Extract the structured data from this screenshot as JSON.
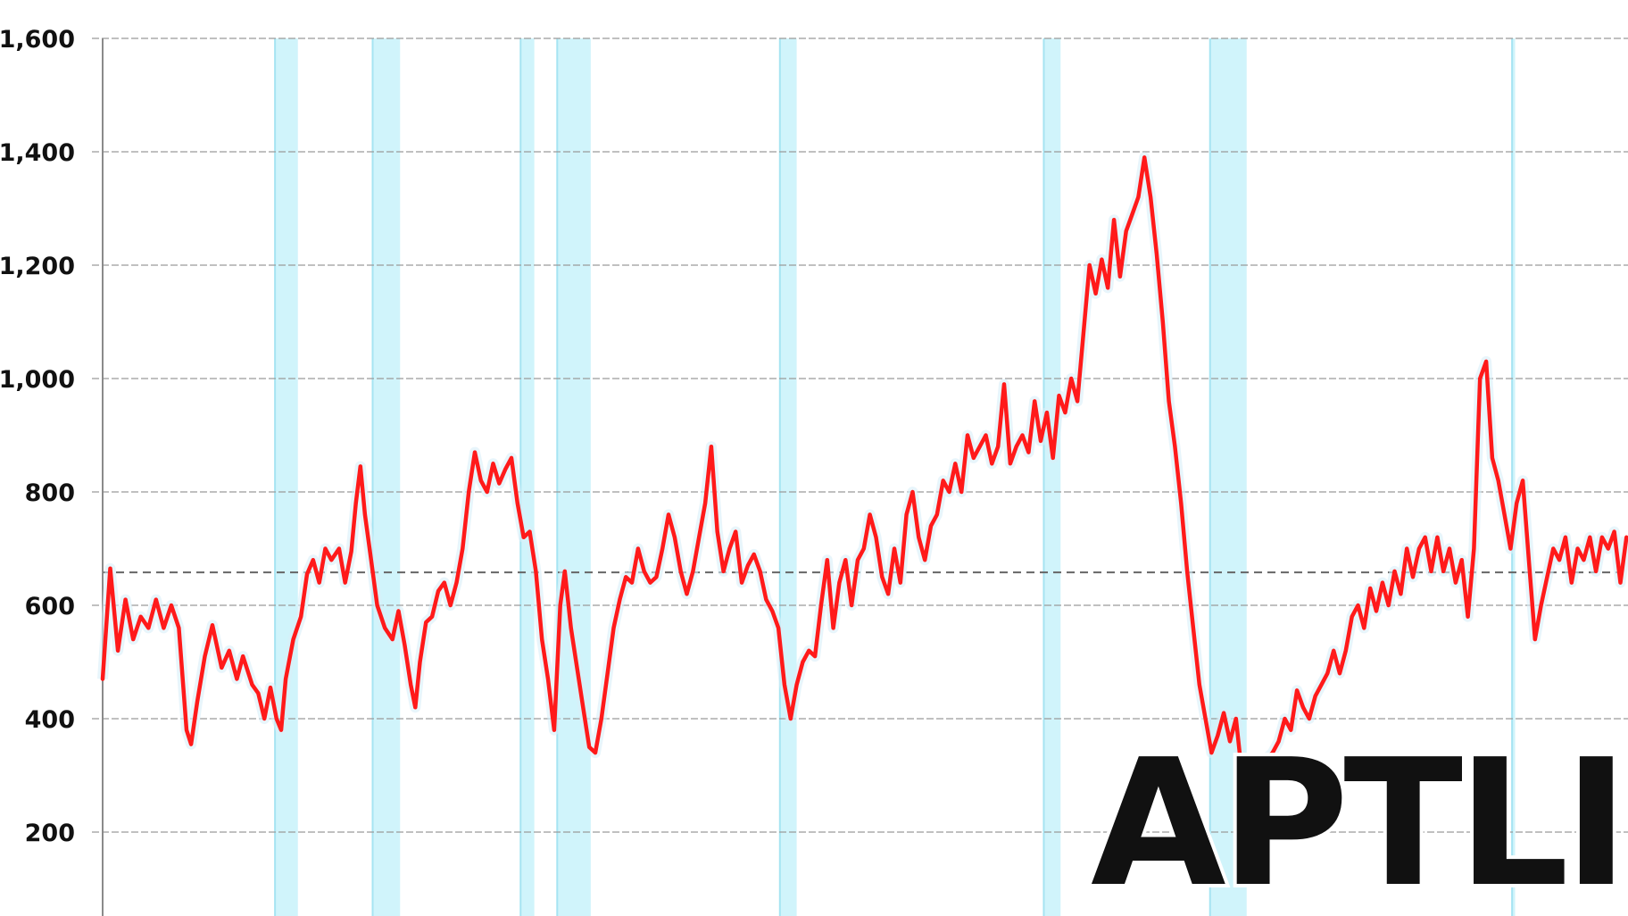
{
  "chart_data": {
    "type": "line",
    "title": "",
    "xlabel": "",
    "ylabel": "",
    "ylim": [
      100,
      1600
    ],
    "y_ticks": [
      1600,
      1400,
      1200,
      1000,
      800,
      600,
      400,
      200
    ],
    "y_tick_labels": [
      "1,600",
      "1,400",
      "1,200",
      "1,000",
      "800",
      "600",
      "400",
      "200"
    ],
    "grid": true,
    "x_range": [
      0,
      1000
    ],
    "reference_line": {
      "value": 658,
      "style": "dashed"
    },
    "shaded_bands": [
      {
        "start": 113,
        "end": 128
      },
      {
        "start": 177,
        "end": 195
      },
      {
        "start": 274,
        "end": 283
      },
      {
        "start": 298,
        "end": 320
      },
      {
        "start": 444,
        "end": 455
      },
      {
        "start": 617,
        "end": 628
      },
      {
        "start": 726,
        "end": 750
      },
      {
        "start": 924,
        "end": 926
      }
    ],
    "series": [
      {
        "color": "#ff1a1a",
        "points": [
          [
            0,
            470
          ],
          [
            5,
            665
          ],
          [
            10,
            520
          ],
          [
            15,
            610
          ],
          [
            20,
            540
          ],
          [
            25,
            580
          ],
          [
            30,
            560
          ],
          [
            35,
            610
          ],
          [
            40,
            560
          ],
          [
            45,
            600
          ],
          [
            50,
            560
          ],
          [
            55,
            380
          ],
          [
            58,
            355
          ],
          [
            62,
            430
          ],
          [
            67,
            510
          ],
          [
            72,
            565
          ],
          [
            78,
            490
          ],
          [
            83,
            520
          ],
          [
            88,
            470
          ],
          [
            92,
            510
          ],
          [
            98,
            460
          ],
          [
            102,
            445
          ],
          [
            106,
            400
          ],
          [
            110,
            455
          ],
          [
            114,
            400
          ],
          [
            117,
            380
          ],
          [
            120,
            470
          ],
          [
            125,
            540
          ],
          [
            130,
            580
          ],
          [
            134,
            655
          ],
          [
            138,
            680
          ],
          [
            142,
            640
          ],
          [
            146,
            700
          ],
          [
            150,
            680
          ],
          [
            155,
            700
          ],
          [
            159,
            640
          ],
          [
            163,
            695
          ],
          [
            166,
            780
          ],
          [
            169,
            845
          ],
          [
            172,
            760
          ],
          [
            176,
            680
          ],
          [
            180,
            600
          ],
          [
            185,
            560
          ],
          [
            190,
            540
          ],
          [
            194,
            590
          ],
          [
            198,
            530
          ],
          [
            202,
            460
          ],
          [
            205,
            420
          ],
          [
            208,
            500
          ],
          [
            212,
            570
          ],
          [
            216,
            580
          ],
          [
            220,
            625
          ],
          [
            224,
            640
          ],
          [
            228,
            600
          ],
          [
            232,
            640
          ],
          [
            236,
            700
          ],
          [
            240,
            800
          ],
          [
            244,
            870
          ],
          [
            248,
            820
          ],
          [
            252,
            800
          ],
          [
            256,
            850
          ],
          [
            260,
            815
          ],
          [
            264,
            840
          ],
          [
            268,
            860
          ],
          [
            272,
            780
          ],
          [
            276,
            720
          ],
          [
            280,
            730
          ],
          [
            284,
            660
          ],
          [
            288,
            540
          ],
          [
            292,
            470
          ],
          [
            296,
            380
          ],
          [
            300,
            600
          ],
          [
            303,
            660
          ],
          [
            307,
            560
          ],
          [
            311,
            490
          ],
          [
            315,
            420
          ],
          [
            319,
            350
          ],
          [
            323,
            340
          ],
          [
            327,
            400
          ],
          [
            331,
            480
          ],
          [
            335,
            560
          ],
          [
            339,
            610
          ],
          [
            343,
            650
          ],
          [
            347,
            640
          ],
          [
            351,
            700
          ],
          [
            355,
            660
          ],
          [
            359,
            640
          ],
          [
            363,
            650
          ],
          [
            367,
            700
          ],
          [
            371,
            760
          ],
          [
            375,
            720
          ],
          [
            379,
            660
          ],
          [
            383,
            620
          ],
          [
            387,
            660
          ],
          [
            391,
            720
          ],
          [
            395,
            780
          ],
          [
            399,
            880
          ],
          [
            403,
            730
          ],
          [
            407,
            660
          ],
          [
            411,
            700
          ],
          [
            415,
            730
          ],
          [
            419,
            640
          ],
          [
            423,
            670
          ],
          [
            427,
            690
          ],
          [
            431,
            660
          ],
          [
            435,
            610
          ],
          [
            439,
            590
          ],
          [
            443,
            560
          ],
          [
            447,
            460
          ],
          [
            451,
            400
          ],
          [
            455,
            460
          ],
          [
            459,
            500
          ],
          [
            463,
            520
          ],
          [
            467,
            510
          ],
          [
            471,
            600
          ],
          [
            475,
            680
          ],
          [
            479,
            560
          ],
          [
            483,
            640
          ],
          [
            487,
            680
          ],
          [
            491,
            600
          ],
          [
            495,
            680
          ],
          [
            499,
            700
          ],
          [
            503,
            760
          ],
          [
            507,
            720
          ],
          [
            511,
            650
          ],
          [
            515,
            620
          ],
          [
            519,
            700
          ],
          [
            523,
            640
          ],
          [
            527,
            760
          ],
          [
            531,
            800
          ],
          [
            535,
            720
          ],
          [
            539,
            680
          ],
          [
            543,
            740
          ],
          [
            547,
            760
          ],
          [
            551,
            820
          ],
          [
            555,
            800
          ],
          [
            559,
            850
          ],
          [
            563,
            800
          ],
          [
            567,
            900
          ],
          [
            571,
            860
          ],
          [
            575,
            880
          ],
          [
            579,
            900
          ],
          [
            583,
            850
          ],
          [
            587,
            880
          ],
          [
            591,
            990
          ],
          [
            595,
            850
          ],
          [
            599,
            880
          ],
          [
            603,
            900
          ],
          [
            607,
            870
          ],
          [
            611,
            960
          ],
          [
            615,
            890
          ],
          [
            619,
            940
          ],
          [
            623,
            860
          ],
          [
            627,
            970
          ],
          [
            631,
            940
          ],
          [
            635,
            1000
          ],
          [
            639,
            960
          ],
          [
            643,
            1080
          ],
          [
            647,
            1200
          ],
          [
            651,
            1150
          ],
          [
            655,
            1210
          ],
          [
            659,
            1160
          ],
          [
            663,
            1280
          ],
          [
            667,
            1180
          ],
          [
            671,
            1260
          ],
          [
            675,
            1290
          ],
          [
            679,
            1320
          ],
          [
            683,
            1390
          ],
          [
            687,
            1320
          ],
          [
            691,
            1220
          ],
          [
            695,
            1100
          ],
          [
            699,
            960
          ],
          [
            703,
            880
          ],
          [
            707,
            780
          ],
          [
            711,
            660
          ],
          [
            715,
            560
          ],
          [
            719,
            460
          ],
          [
            723,
            400
          ],
          [
            727,
            340
          ],
          [
            731,
            370
          ],
          [
            735,
            410
          ],
          [
            739,
            360
          ],
          [
            743,
            400
          ],
          [
            747,
            300
          ],
          [
            751,
            250
          ],
          [
            755,
            240
          ],
          [
            759,
            270
          ],
          [
            763,
            330
          ],
          [
            767,
            340
          ],
          [
            771,
            360
          ],
          [
            775,
            400
          ],
          [
            779,
            380
          ],
          [
            783,
            450
          ],
          [
            787,
            420
          ],
          [
            791,
            400
          ],
          [
            795,
            440
          ],
          [
            799,
            460
          ],
          [
            803,
            480
          ],
          [
            807,
            520
          ],
          [
            811,
            480
          ],
          [
            815,
            520
          ],
          [
            819,
            580
          ],
          [
            823,
            600
          ],
          [
            827,
            560
          ],
          [
            831,
            630
          ],
          [
            835,
            590
          ],
          [
            839,
            640
          ],
          [
            843,
            600
          ],
          [
            847,
            660
          ],
          [
            851,
            620
          ],
          [
            855,
            700
          ],
          [
            859,
            650
          ],
          [
            863,
            700
          ],
          [
            867,
            720
          ],
          [
            871,
            660
          ],
          [
            875,
            720
          ],
          [
            879,
            660
          ],
          [
            883,
            700
          ],
          [
            887,
            640
          ],
          [
            891,
            680
          ],
          [
            895,
            580
          ],
          [
            899,
            700
          ],
          [
            903,
            1000
          ],
          [
            907,
            1030
          ],
          [
            911,
            860
          ],
          [
            915,
            820
          ],
          [
            919,
            760
          ],
          [
            923,
            700
          ],
          [
            927,
            780
          ],
          [
            931,
            820
          ],
          [
            935,
            680
          ],
          [
            939,
            540
          ],
          [
            943,
            600
          ],
          [
            947,
            650
          ],
          [
            951,
            700
          ],
          [
            955,
            680
          ],
          [
            959,
            720
          ],
          [
            963,
            640
          ],
          [
            967,
            700
          ],
          [
            971,
            680
          ],
          [
            975,
            720
          ],
          [
            979,
            660
          ],
          [
            983,
            720
          ],
          [
            987,
            700
          ],
          [
            991,
            730
          ],
          [
            995,
            640
          ],
          [
            999,
            720
          ]
        ]
      }
    ]
  },
  "watermark": {
    "text": "APTLIE"
  }
}
